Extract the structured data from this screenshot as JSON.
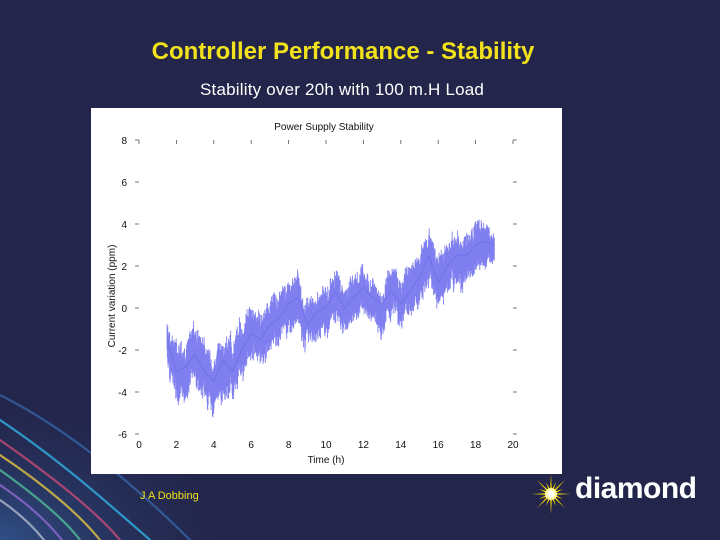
{
  "slide": {
    "title": "Controller Performance - Stability",
    "subtitle": "Stability over 20h with 100 m.H Load",
    "author": "J A Dobbing",
    "brand": "diamond"
  },
  "colors": {
    "background": "#23254a",
    "title": "#f2e21c",
    "series": "#7f7ff0",
    "brand_star": "#f5d800"
  },
  "icons": [
    "diamond-star-logo-icon"
  ],
  "chart_data": {
    "type": "line",
    "title": "Power Supply Stability",
    "xlabel": "Time (h)",
    "ylabel": "Current variation (ppm)",
    "xlim": [
      0,
      20
    ],
    "ylim": [
      -6,
      8
    ],
    "x_ticks": [
      0,
      2,
      4,
      6,
      8,
      10,
      12,
      14,
      16,
      18,
      20
    ],
    "y_ticks": [
      -6,
      -4,
      -2,
      0,
      2,
      4,
      6,
      8
    ],
    "grid": false,
    "legend": "none",
    "series": [
      {
        "x": [
          1.5,
          2.0,
          2.5,
          3.0,
          3.5,
          4.0,
          4.5,
          5.0,
          5.5,
          6.0,
          6.5,
          7.0,
          7.5,
          8.0,
          8.5,
          9.0,
          9.5,
          10.0,
          10.5,
          11.0,
          11.5,
          12.0,
          12.5,
          13.0,
          13.5,
          14.0,
          14.5,
          15.0,
          15.5,
          16.0,
          16.5,
          17.0,
          17.5,
          18.0,
          18.5,
          19.0
        ],
        "y": [
          -1.5,
          -3.0,
          -2.8,
          -2.2,
          -3.0,
          -3.5,
          -2.5,
          -3.0,
          -2.0,
          -1.2,
          -1.5,
          -0.8,
          -0.5,
          0.2,
          0.5,
          -0.8,
          -0.2,
          0.0,
          0.8,
          0.0,
          0.5,
          1.0,
          0.5,
          0.2,
          0.8,
          0.2,
          0.8,
          1.5,
          2.5,
          1.2,
          2.0,
          2.5,
          2.5,
          3.0,
          3.2,
          3.0
        ],
        "spread": [
          1.0,
          1.5,
          1.4,
          1.5,
          1.5,
          1.4,
          1.5,
          1.5,
          1.4,
          1.3,
          1.2,
          1.3,
          1.2,
          1.2,
          1.3,
          1.1,
          1.1,
          1.2,
          1.2,
          1.1,
          1.1,
          1.1,
          1.0,
          1.1,
          1.2,
          1.1,
          1.2,
          1.3,
          1.3,
          1.3,
          1.2,
          1.3,
          1.2,
          1.3,
          1.0,
          0.7
        ]
      }
    ]
  }
}
